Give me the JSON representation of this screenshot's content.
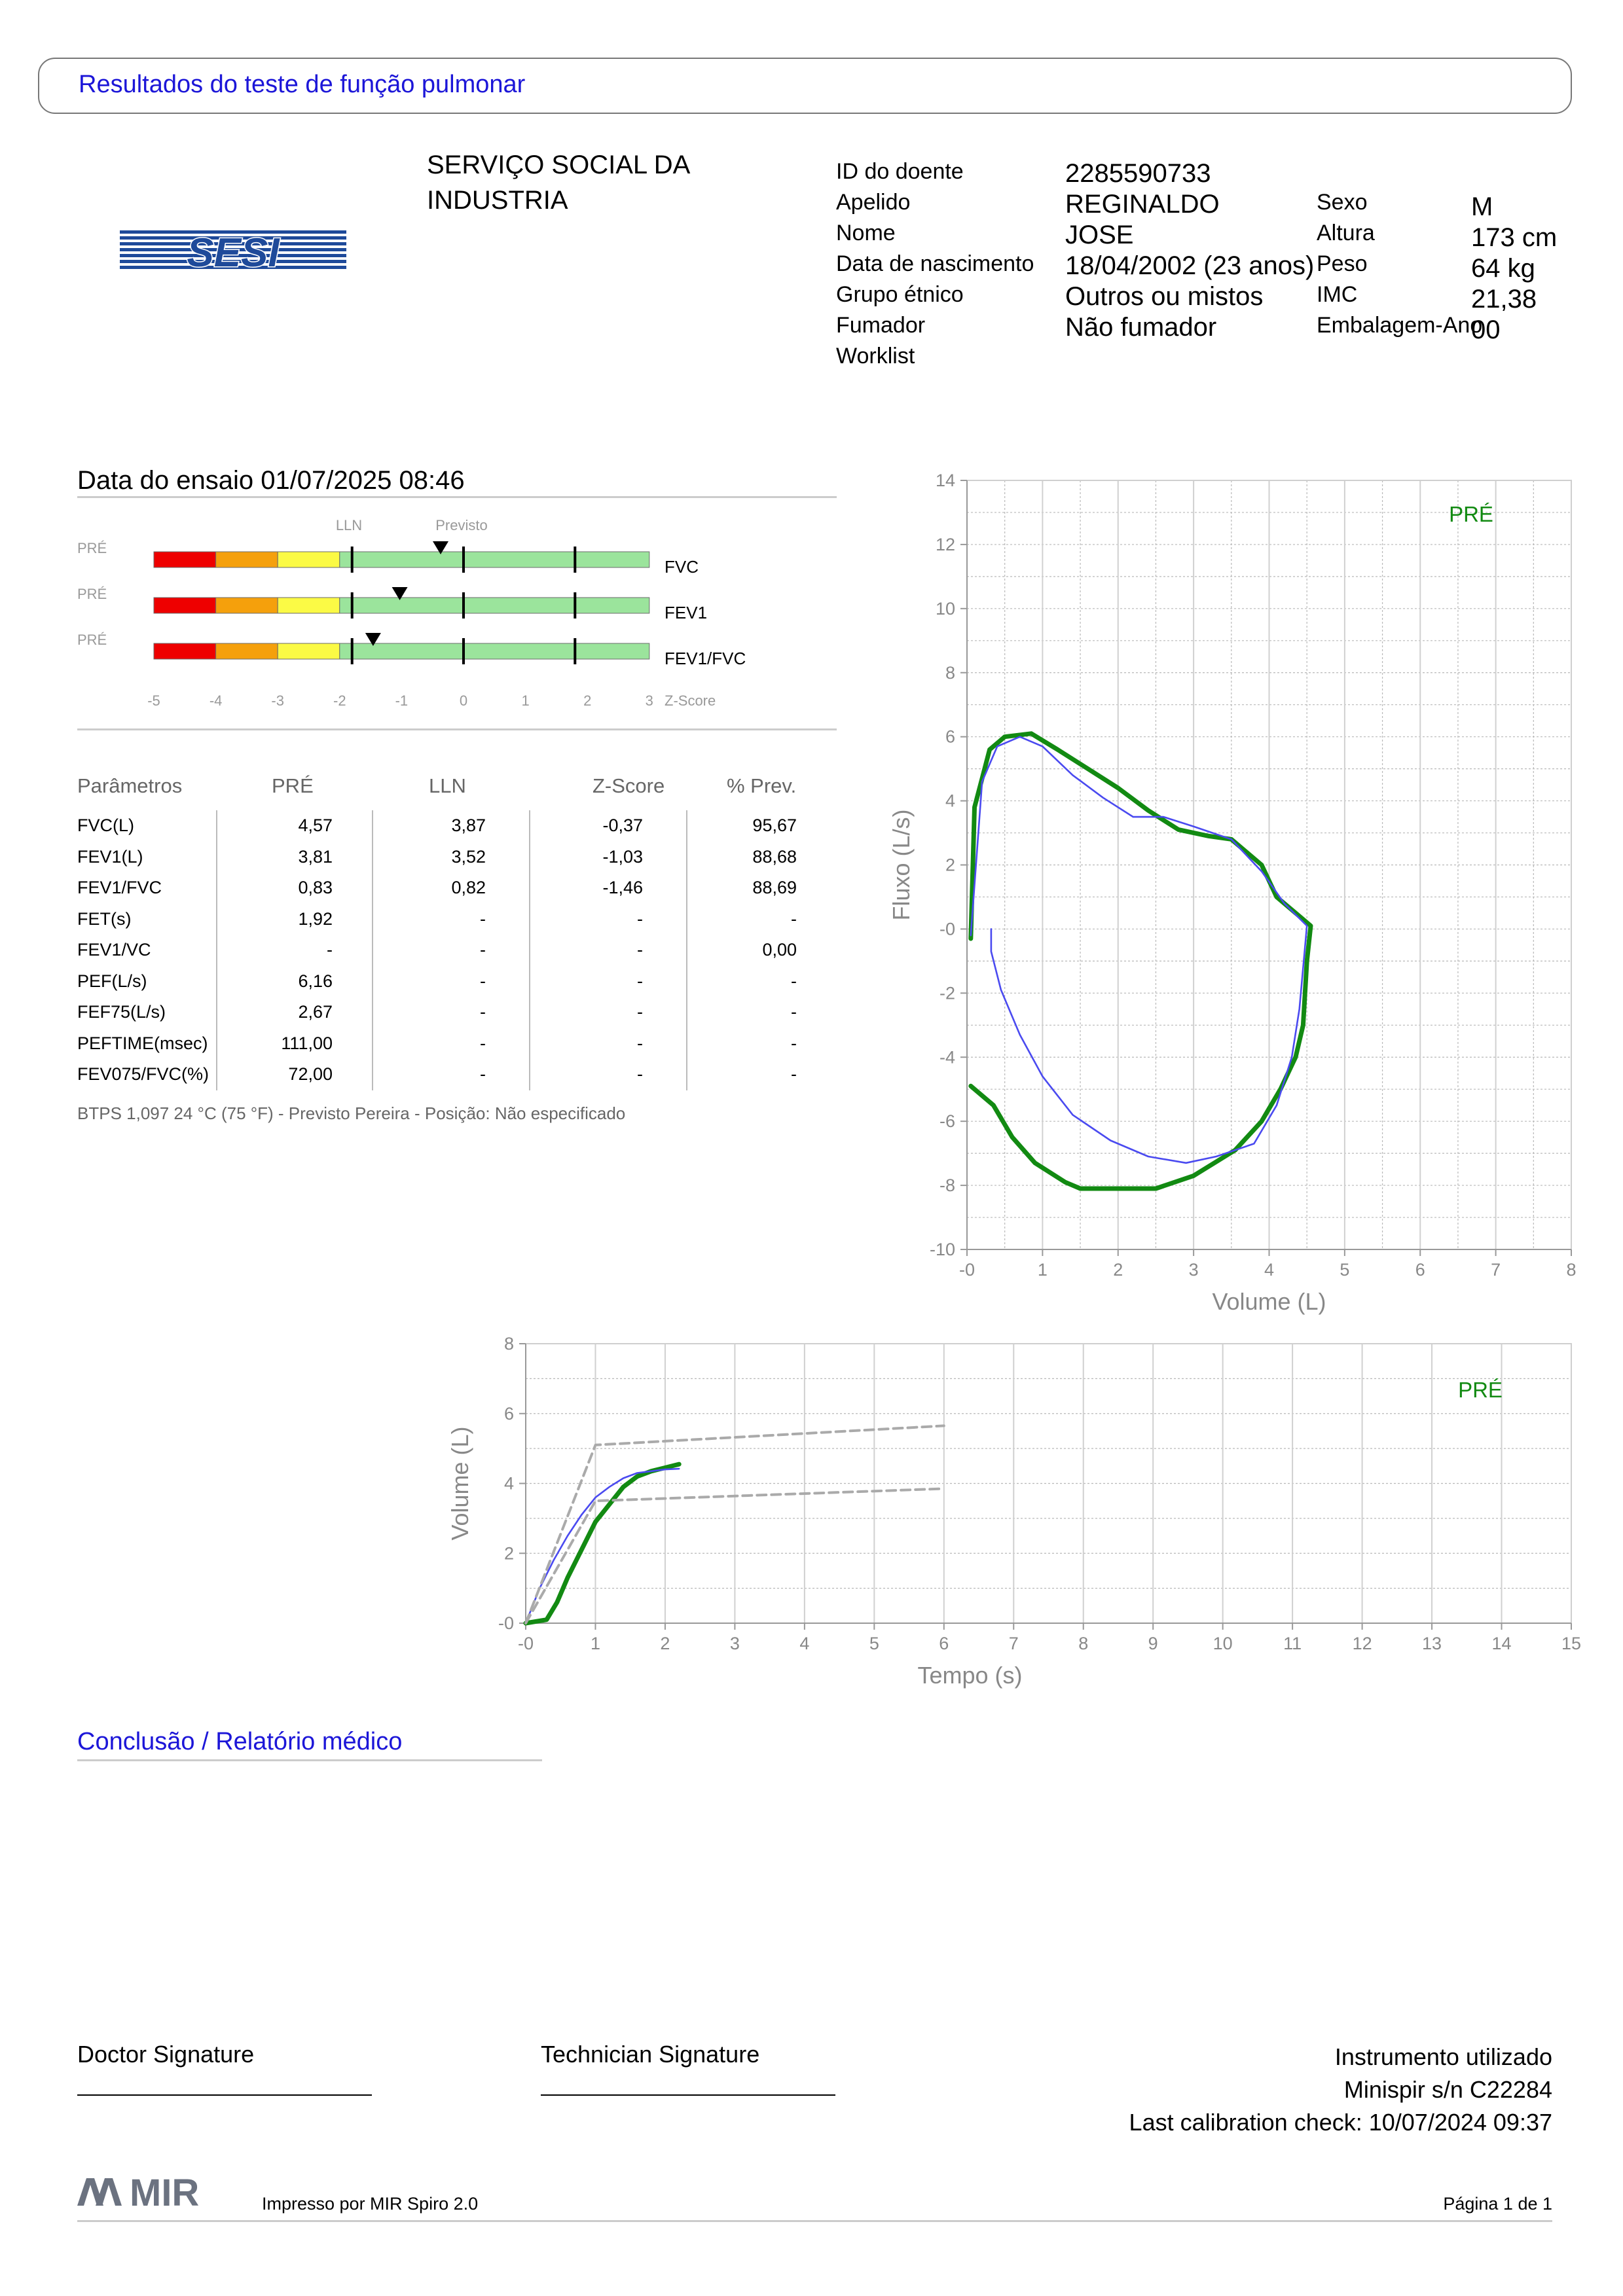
{
  "page_title": "Resultados do teste de função pulmonar",
  "logo_text": "SESI",
  "institution": {
    "line1": "SERVIÇO SOCIAL DA",
    "line2": "INDUSTRIA"
  },
  "patient_left": [
    {
      "label": "ID do doente",
      "value": "2285590733"
    },
    {
      "label": "Apelido",
      "value": "REGINALDO"
    },
    {
      "label": "Nome",
      "value": "JOSE"
    },
    {
      "label": "Data de nascimento",
      "value": "18/04/2002 (23 anos)"
    },
    {
      "label": "Grupo étnico",
      "value": "Outros ou mistos"
    },
    {
      "label": "Fumador",
      "value": "Não fumador"
    },
    {
      "label": "Worklist",
      "value": ""
    }
  ],
  "patient_right": [
    {
      "label": "Sexo",
      "value": "M"
    },
    {
      "label": "Altura",
      "value": "173 cm"
    },
    {
      "label": "Peso",
      "value": "64 kg"
    },
    {
      "label": "IMC",
      "value": "21,38"
    },
    {
      "label": "Embalagem-Ano",
      "value": "00"
    }
  ],
  "test_date": "Data do ensaio 01/07/2025 08:46",
  "zscore": {
    "lln_label": "LLN",
    "pred_label": "Previsto",
    "axis_title": "Z-Score",
    "ticks": [
      "-5",
      "-4",
      "-3",
      "-2",
      "-1",
      "0",
      "1",
      "2",
      "3"
    ],
    "bars": [
      {
        "tag": "PRÉ",
        "name": "FVC",
        "z": -0.37
      },
      {
        "tag": "PRÉ",
        "name": "FEV1",
        "z": -1.03
      },
      {
        "tag": "PRÉ",
        "name": "FEV1/FVC",
        "z": -1.46
      }
    ],
    "colors": {
      "red": "#ee0000",
      "orange": "#f5a00c",
      "yellow": "#fbfa45",
      "green": "#9be49c"
    }
  },
  "params": {
    "headers": [
      "Parâmetros",
      "PRÉ",
      "LLN",
      "Z-Score",
      "% Prev."
    ],
    "rows": [
      [
        "FVC(L)",
        "4,57",
        "3,87",
        "-0,37",
        "95,67"
      ],
      [
        "FEV1(L)",
        "3,81",
        "3,52",
        "-1,03",
        "88,68"
      ],
      [
        "FEV1/FVC",
        "0,83",
        "0,82",
        "-1,46",
        "88,69"
      ],
      [
        "FET(s)",
        "1,92",
        "-",
        "-",
        "-"
      ],
      [
        "FEV1/VC",
        "-",
        "-",
        "-",
        "0,00"
      ],
      [
        "PEF(L/s)",
        "6,16",
        "-",
        "-",
        "-"
      ],
      [
        "FEF75(L/s)",
        "2,67",
        "-",
        "-",
        "-"
      ],
      [
        "PEFTIME(msec)",
        "111,00",
        "-",
        "-",
        "-"
      ],
      [
        "FEV075/FVC(%)",
        "72,00",
        "-",
        "-",
        "-"
      ]
    ]
  },
  "btps_note": "BTPS 1,097 24 °C (75 °F) - Previsto Pereira - Posição: Não especificado",
  "chart_data": [
    {
      "type": "line",
      "title": "",
      "legend": "PRÉ",
      "xlabel": "Volume (L)",
      "ylabel": "Fluxo (L/s)",
      "xlim": [
        0,
        8
      ],
      "ylim": [
        -10,
        14
      ],
      "xticks": [
        "-0",
        "1",
        "2",
        "3",
        "4",
        "5",
        "6",
        "7",
        "8"
      ],
      "yticks": [
        "14",
        "12",
        "10",
        "8",
        "6",
        "4",
        "2",
        "-0",
        "-2",
        "-4",
        "-6",
        "-8",
        "-10"
      ],
      "series": [
        {
          "color": "#128a12",
          "points": [
            [
              0.05,
              -0.3
            ],
            [
              0.1,
              3.8
            ],
            [
              0.2,
              4.7
            ],
            [
              0.3,
              5.6
            ],
            [
              0.5,
              6.0
            ],
            [
              0.85,
              6.1
            ],
            [
              1.2,
              5.6
            ],
            [
              1.6,
              5.0
            ],
            [
              2.0,
              4.4
            ],
            [
              2.4,
              3.7
            ],
            [
              2.8,
              3.1
            ],
            [
              3.2,
              2.9
            ],
            [
              3.5,
              2.8
            ],
            [
              3.9,
              2.0
            ],
            [
              4.1,
              1.0
            ],
            [
              4.35,
              0.5
            ],
            [
              4.55,
              0.1
            ],
            [
              4.5,
              -1.0
            ],
            [
              4.45,
              -3.0
            ],
            [
              4.35,
              -4.0
            ],
            [
              4.15,
              -5.0
            ],
            [
              3.9,
              -6.0
            ],
            [
              3.55,
              -6.9
            ],
            [
              3.0,
              -7.7
            ],
            [
              2.5,
              -8.1
            ],
            [
              2.0,
              -8.1
            ],
            [
              1.5,
              -8.1
            ],
            [
              1.3,
              -7.9
            ],
            [
              0.9,
              -7.3
            ],
            [
              0.6,
              -6.5
            ],
            [
              0.35,
              -5.5
            ],
            [
              0.05,
              -4.9
            ]
          ]
        },
        {
          "color": "#4a4af0",
          "points": [
            [
              0.05,
              -0.2
            ],
            [
              0.2,
              4.6
            ],
            [
              0.4,
              5.7
            ],
            [
              0.7,
              6.0
            ],
            [
              1.0,
              5.7
            ],
            [
              1.4,
              4.8
            ],
            [
              1.8,
              4.1
            ],
            [
              2.2,
              3.5
            ],
            [
              2.6,
              3.5
            ],
            [
              3.0,
              3.2
            ],
            [
              3.5,
              2.8
            ],
            [
              3.9,
              1.8
            ],
            [
              4.2,
              0.8
            ],
            [
              4.5,
              0.1
            ],
            [
              4.4,
              -2.5
            ],
            [
              4.3,
              -4.0
            ],
            [
              4.1,
              -5.5
            ],
            [
              3.8,
              -6.7
            ],
            [
              3.3,
              -7.1
            ],
            [
              2.9,
              -7.3
            ],
            [
              2.4,
              -7.1
            ],
            [
              1.9,
              -6.6
            ],
            [
              1.4,
              -5.8
            ],
            [
              1.0,
              -4.6
            ],
            [
              0.7,
              -3.3
            ],
            [
              0.45,
              -1.9
            ],
            [
              0.32,
              -0.7
            ],
            [
              0.32,
              0.0
            ]
          ]
        }
      ]
    },
    {
      "type": "line",
      "title": "",
      "legend": "PRÉ",
      "xlabel": "Tempo (s)",
      "ylabel": "Volume (L)",
      "xlim": [
        0,
        15
      ],
      "ylim": [
        0,
        8
      ],
      "xticks": [
        "-0",
        "1",
        "2",
        "3",
        "4",
        "5",
        "6",
        "7",
        "8",
        "9",
        "10",
        "11",
        "12",
        "13",
        "14",
        "15"
      ],
      "yticks": [
        "8",
        "6",
        "4",
        "2",
        "-0"
      ],
      "series": [
        {
          "color": "#128a12",
          "points": [
            [
              0.0,
              0.0
            ],
            [
              0.3,
              0.1
            ],
            [
              0.45,
              0.6
            ],
            [
              0.6,
              1.3
            ],
            [
              0.8,
              2.1
            ],
            [
              1.0,
              2.9
            ],
            [
              1.2,
              3.4
            ],
            [
              1.4,
              3.9
            ],
            [
              1.6,
              4.2
            ],
            [
              1.8,
              4.35
            ],
            [
              2.0,
              4.45
            ],
            [
              2.2,
              4.55
            ]
          ]
        },
        {
          "color": "#4a4af0",
          "points": [
            [
              0.0,
              0.0
            ],
            [
              0.2,
              1.0
            ],
            [
              0.4,
              1.8
            ],
            [
              0.6,
              2.5
            ],
            [
              0.8,
              3.1
            ],
            [
              1.0,
              3.6
            ],
            [
              1.2,
              3.9
            ],
            [
              1.4,
              4.15
            ],
            [
              1.6,
              4.3
            ],
            [
              1.8,
              4.35
            ],
            [
              2.0,
              4.4
            ],
            [
              2.2,
              4.42
            ]
          ]
        },
        {
          "color": "#aaaaaa",
          "dashed": true,
          "points": [
            [
              0.0,
              0.0
            ],
            [
              1.0,
              5.1
            ],
            [
              6.0,
              5.65
            ]
          ]
        },
        {
          "color": "#aaaaaa",
          "dashed": true,
          "points": [
            [
              0.0,
              0.0
            ],
            [
              1.0,
              3.5
            ],
            [
              6.0,
              3.85
            ]
          ]
        }
      ]
    }
  ],
  "conclusion_title": "Conclusão / Relatório médico",
  "signatures": {
    "doctor": "Doctor Signature",
    "technician": "Technician Signature",
    "instrument_title": "Instrumento utilizado",
    "instrument_model": "Minispir s/n C22284",
    "calibration": "Last calibration check: 10/07/2024 09:37"
  },
  "footer": {
    "logo": "MIR",
    "printed_by": "Impresso por MIR Spiro 2.0",
    "page": "Página 1 de 1"
  }
}
